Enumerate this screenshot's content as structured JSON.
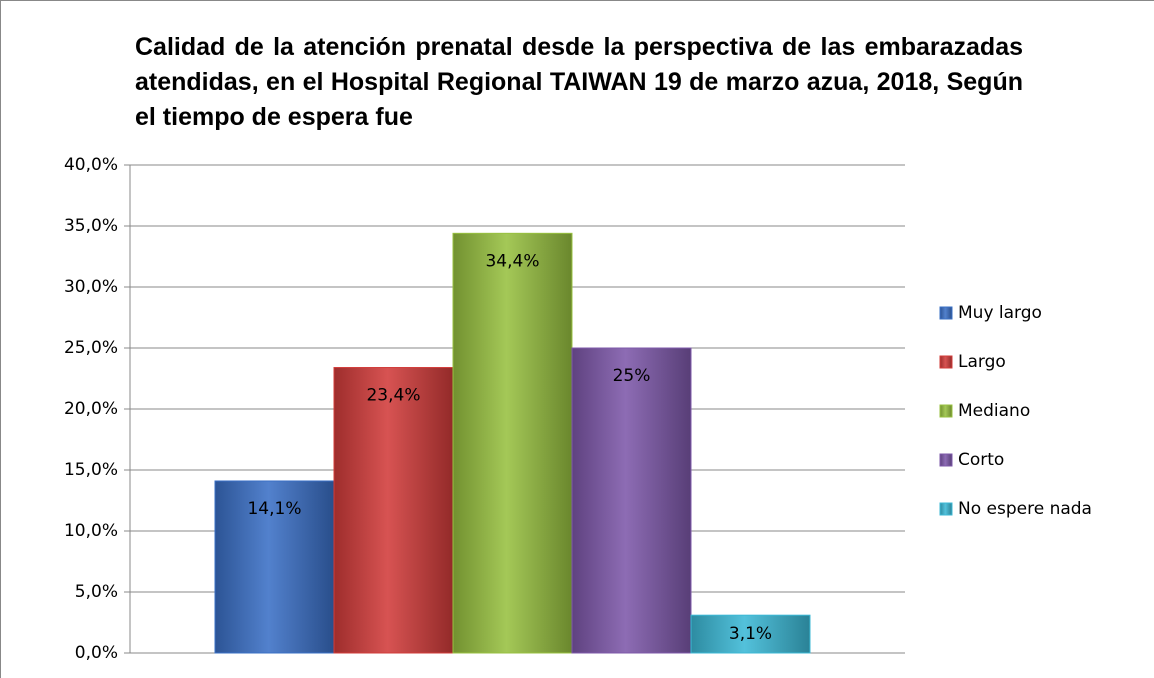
{
  "chart_data": {
    "type": "bar",
    "title": "Calidad de la atención prenatal desde la perspectiva de las embarazadas atendidas, en el Hospital Regional TAIWAN 19 de marzo azua, 2018, Según el tiempo de espera fue",
    "series": [
      {
        "name": "Muy largo",
        "color": "#3a70c6",
        "values": [
          14.1
        ],
        "value_labels": [
          "14,1%"
        ]
      },
      {
        "name": "Largo",
        "color": "#d23c3a",
        "values": [
          23.4
        ],
        "value_labels": [
          "23,4%"
        ]
      },
      {
        "name": "Mediano",
        "color": "#98c140",
        "values": [
          34.4
        ],
        "value_labels": [
          "34,4%"
        ]
      },
      {
        "name": "Corto",
        "color": "#7e58aa",
        "values": [
          25
        ],
        "value_labels": [
          "25%"
        ]
      },
      {
        "name": "No espere nada",
        "color": "#3cb9d6",
        "values": [
          3.1
        ],
        "value_labels": [
          "3,1%"
        ]
      }
    ],
    "ylim": [
      0,
      40
    ],
    "yticks": [
      {
        "value": 0,
        "label": "0,0%"
      },
      {
        "value": 5,
        "label": "5,0%"
      },
      {
        "value": 10,
        "label": "10,0%"
      },
      {
        "value": 15,
        "label": "15,0%"
      },
      {
        "value": 20,
        "label": "20,0%"
      },
      {
        "value": 25,
        "label": "25,0%"
      },
      {
        "value": 30,
        "label": "30,0%"
      },
      {
        "value": 35,
        "label": "35,0%"
      },
      {
        "value": 40,
        "label": "40,0%"
      }
    ],
    "grid": true,
    "legend": "right"
  }
}
